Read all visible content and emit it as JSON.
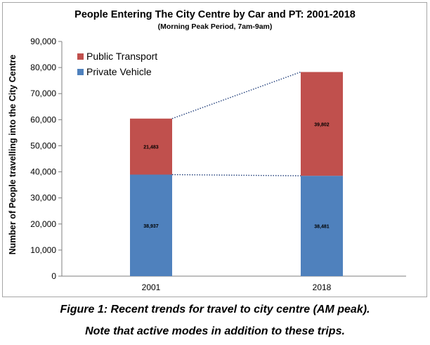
{
  "chart_data": {
    "type": "bar",
    "stacked": true,
    "title": "People Entering The City Centre by Car and PT: 2001-2018",
    "subtitle": "(Morning Peak Period, 7am-9am)",
    "xlabel": "",
    "ylabel": "Number of People travelling into the City Centre",
    "categories": [
      "2001",
      "2018"
    ],
    "series": [
      {
        "name": "Private Vehicle",
        "values": [
          38937,
          38481
        ],
        "labels": [
          "38,937",
          "38,481"
        ],
        "color": "#4f81bd"
      },
      {
        "name": "Public Transport",
        "values": [
          21483,
          39802
        ],
        "labels": [
          "21,483",
          "39,802"
        ],
        "color": "#c0504d"
      }
    ],
    "ylim": [
      0,
      90000
    ],
    "yticks": [
      0,
      10000,
      20000,
      30000,
      40000,
      50000,
      60000,
      70000,
      80000,
      90000
    ],
    "ytick_labels": [
      "0",
      "10,000",
      "20,000",
      "30,000",
      "40,000",
      "50,000",
      "60,000",
      "70,000",
      "80,000",
      "90,000"
    ],
    "grid": false,
    "legend_position": "top-left",
    "annotations": "dotted trend lines connecting bar tops between 2001 and 2018"
  },
  "caption": {
    "line1": "Figure 1: Recent trends for travel to city centre (AM peak).",
    "line2": "Note that active modes in addition to these trips."
  }
}
